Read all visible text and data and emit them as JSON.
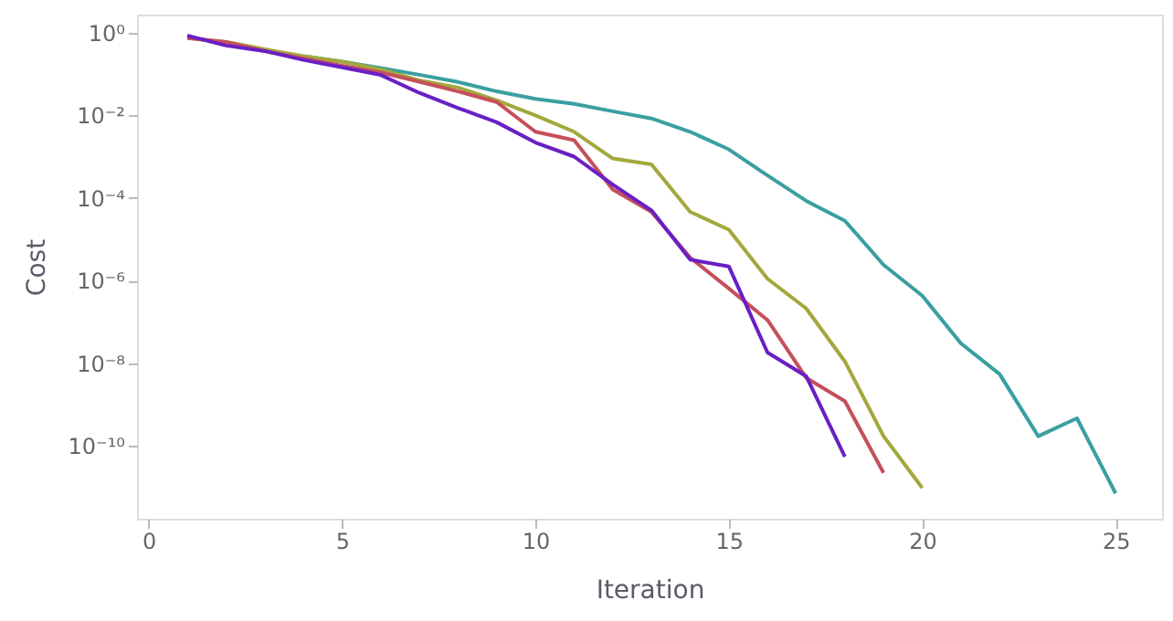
{
  "chart_data": {
    "type": "line",
    "xlabel": "Iteration",
    "ylabel": "Cost",
    "log": "y",
    "grid": false,
    "marker": "none",
    "line_style": "solid",
    "xlim": [
      -0.3,
      26.2
    ],
    "xticks": [
      0,
      5,
      10,
      15,
      20,
      25
    ],
    "ylim": [
      1.7e-12,
      2.75
    ],
    "yticks": [
      {
        "value": 1,
        "label": "10⁰"
      },
      {
        "value": 0.01,
        "label": "10⁻²"
      },
      {
        "value": 0.0001,
        "label": "10⁻⁴"
      },
      {
        "value": 1e-06,
        "label": "10⁻⁶"
      },
      {
        "value": 1e-08,
        "label": "10⁻⁸"
      },
      {
        "value": 1e-10,
        "label": "10⁻¹⁰"
      }
    ],
    "series": [
      {
        "color": "#3a9fa0",
        "x": [
          4,
          5,
          6,
          7,
          8,
          9,
          10,
          11,
          12,
          13,
          14,
          15,
          16,
          17,
          18,
          19,
          20,
          21,
          22,
          23,
          24,
          25
        ],
        "values": [
          0.27,
          0.2,
          0.14,
          0.096,
          0.064,
          0.038,
          0.025,
          0.019,
          0.0125,
          0.0084,
          0.004,
          0.0015,
          0.00035,
          8.5e-05,
          2.8e-05,
          2.4e-06,
          4.3e-07,
          3e-08,
          5.4e-09,
          1.7e-10,
          4.6e-10,
          7e-12
        ]
      },
      {
        "color": "#a3a83c",
        "x": [
          1,
          2,
          3,
          4,
          5,
          6,
          7,
          8,
          9,
          10,
          11,
          12,
          13,
          14,
          15,
          16,
          17,
          18,
          19,
          20
        ],
        "values": [
          0.74,
          0.6,
          0.4,
          0.27,
          0.2,
          0.13,
          0.07,
          0.047,
          0.023,
          0.01,
          0.004,
          0.0009,
          0.00065,
          4.6e-05,
          1.7e-05,
          1.1e-06,
          2.1e-07,
          1.1e-08,
          1.7e-10,
          9.5e-12
        ]
      },
      {
        "color": "#c4505a",
        "x": [
          1,
          2,
          3,
          4,
          5,
          6,
          7,
          8,
          9,
          10,
          11,
          12,
          13,
          14,
          15,
          16,
          17,
          18,
          19
        ],
        "values": [
          0.75,
          0.6,
          0.36,
          0.24,
          0.16,
          0.11,
          0.065,
          0.038,
          0.021,
          0.004,
          0.0025,
          0.00016,
          4.6e-05,
          3.6e-06,
          6.4e-07,
          1.1e-07,
          4.4e-09,
          1.2e-09,
          2.2e-11
        ]
      },
      {
        "color": "#6a1fc4",
        "x": [
          1,
          2,
          3,
          4,
          5,
          6,
          7,
          8,
          9,
          10,
          11,
          12,
          13,
          14,
          15,
          16,
          17,
          18
        ],
        "values": [
          0.85,
          0.49,
          0.36,
          0.22,
          0.145,
          0.095,
          0.035,
          0.015,
          0.0068,
          0.0022,
          0.001,
          0.00021,
          5e-05,
          3.2e-06,
          2.2e-06,
          1.8e-08,
          4.8e-09,
          5.4e-11
        ]
      }
    ]
  }
}
